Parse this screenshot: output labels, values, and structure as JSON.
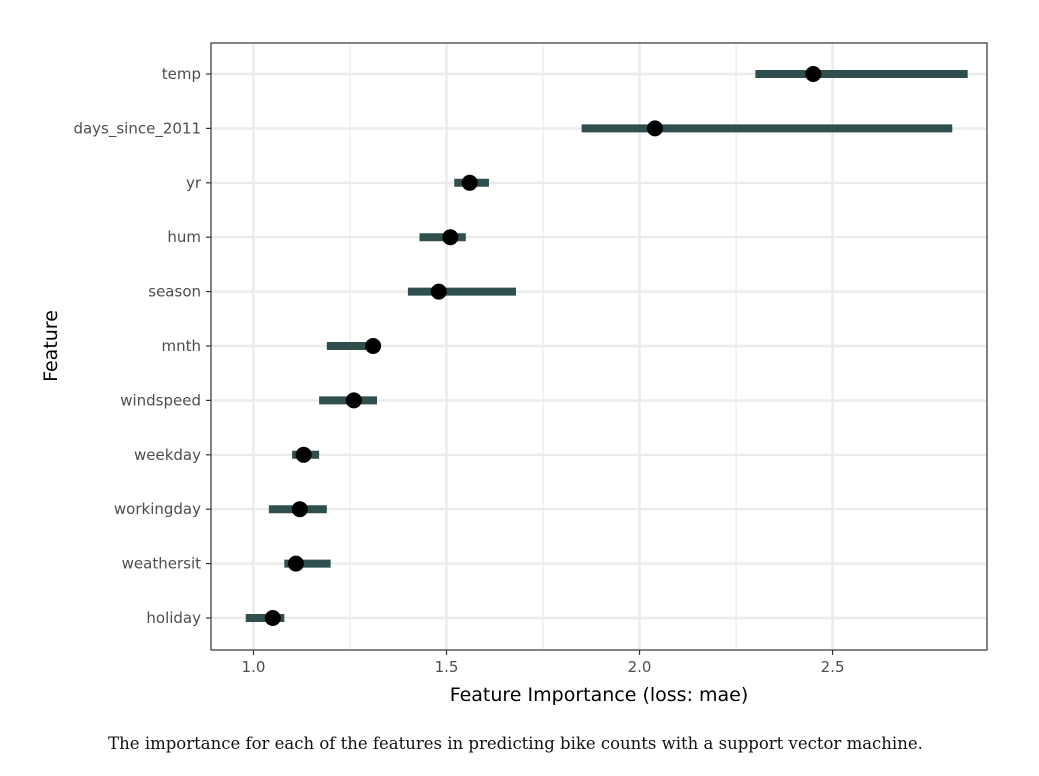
{
  "chart_data": {
    "type": "scatter",
    "subtype": "dot-with-interval",
    "xlabel": "Feature Importance (loss: mae)",
    "ylabel": "Feature",
    "xlim": [
      0.89,
      2.9
    ],
    "xticks": [
      "1.0",
      "1.5",
      "2.0",
      "2.5"
    ],
    "xtick_values": [
      1.0,
      1.5,
      2.0,
      2.5
    ],
    "grid": true,
    "colors": {
      "interval": "#2f4f4f",
      "point": "#000000",
      "grid": "#ebebeb",
      "panel_border": "#333333"
    },
    "features": [
      "temp",
      "days_since_2011",
      "yr",
      "hum",
      "season",
      "mnth",
      "windspeed",
      "weekday",
      "workingday",
      "weathersit",
      "holiday"
    ],
    "importance": [
      2.45,
      2.04,
      1.56,
      1.51,
      1.48,
      1.31,
      1.26,
      1.13,
      1.12,
      1.11,
      1.05
    ],
    "lower": [
      2.3,
      1.85,
      1.52,
      1.43,
      1.4,
      1.19,
      1.17,
      1.1,
      1.04,
      1.08,
      0.98
    ],
    "upper": [
      2.85,
      2.81,
      1.61,
      1.55,
      1.68,
      1.32,
      1.32,
      1.17,
      1.19,
      1.2,
      1.08
    ]
  },
  "caption": "The importance for each of the features in predicting bike counts with a support vector machine."
}
